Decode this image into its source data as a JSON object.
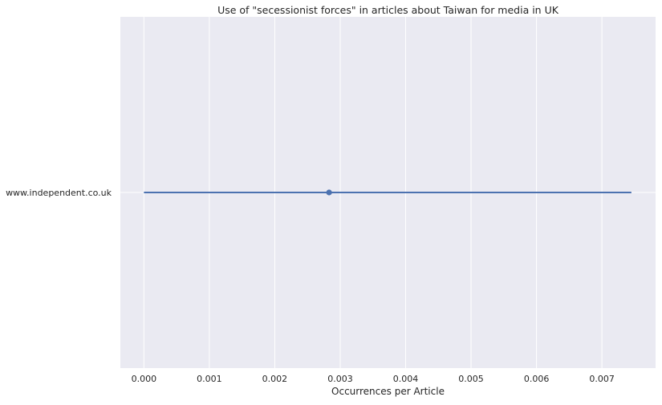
{
  "chart_data": {
    "type": "scatter",
    "title": "Use of \"secessionist forces\" in articles about Taiwan for media in UK",
    "xlabel": "Occurrences per Article",
    "ylabel": "",
    "xlim": [
      -0.00036,
      0.00782
    ],
    "x_ticks": [
      "0.000",
      "0.001",
      "0.002",
      "0.003",
      "0.004",
      "0.005",
      "0.006",
      "0.007"
    ],
    "categories": [
      "www.independent.co.uk"
    ],
    "points": [
      {
        "category": "www.independent.co.uk",
        "value": 0.00283,
        "ci_low": 0.0,
        "ci_high": 0.00745
      }
    ],
    "grid": true,
    "colors": {
      "background": "#eaeaf2",
      "grid": "#ffffff",
      "series": "#4c72b0",
      "text": "#262626"
    }
  }
}
